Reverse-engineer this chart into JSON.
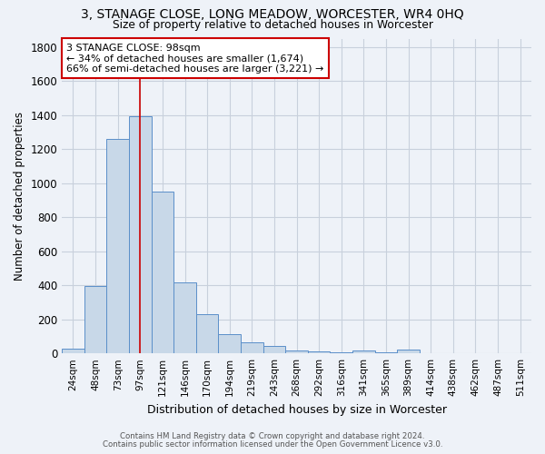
{
  "title": "3, STANAGE CLOSE, LONG MEADOW, WORCESTER, WR4 0HQ",
  "subtitle": "Size of property relative to detached houses in Worcester",
  "xlabel": "Distribution of detached houses by size in Worcester",
  "ylabel": "Number of detached properties",
  "categories": [
    "24sqm",
    "48sqm",
    "73sqm",
    "97sqm",
    "121sqm",
    "146sqm",
    "170sqm",
    "194sqm",
    "219sqm",
    "243sqm",
    "268sqm",
    "292sqm",
    "316sqm",
    "341sqm",
    "365sqm",
    "389sqm",
    "414sqm",
    "438sqm",
    "462sqm",
    "487sqm",
    "511sqm"
  ],
  "values": [
    25,
    395,
    1260,
    1395,
    950,
    415,
    230,
    115,
    65,
    45,
    15,
    10,
    5,
    15,
    5,
    20,
    0,
    0,
    0,
    0,
    0
  ],
  "bar_color": "#c8d8e8",
  "bar_edge_color": "#5b8fc9",
  "grid_color": "#c8d0dc",
  "bg_color": "#eef2f8",
  "vline_x": 3,
  "vline_color": "#cc0000",
  "annotation_line1": "3 STANAGE CLOSE: 98sqm",
  "annotation_line2": "← 34% of detached houses are smaller (1,674)",
  "annotation_line3": "66% of semi-detached houses are larger (3,221) →",
  "annotation_box_color": "#ffffff",
  "annotation_box_edge": "#cc0000",
  "ylim": [
    0,
    1850
  ],
  "yticks": [
    0,
    200,
    400,
    600,
    800,
    1000,
    1200,
    1400,
    1600,
    1800
  ],
  "footnote1": "Contains HM Land Registry data © Crown copyright and database right 2024.",
  "footnote2": "Contains public sector information licensed under the Open Government Licence v3.0."
}
